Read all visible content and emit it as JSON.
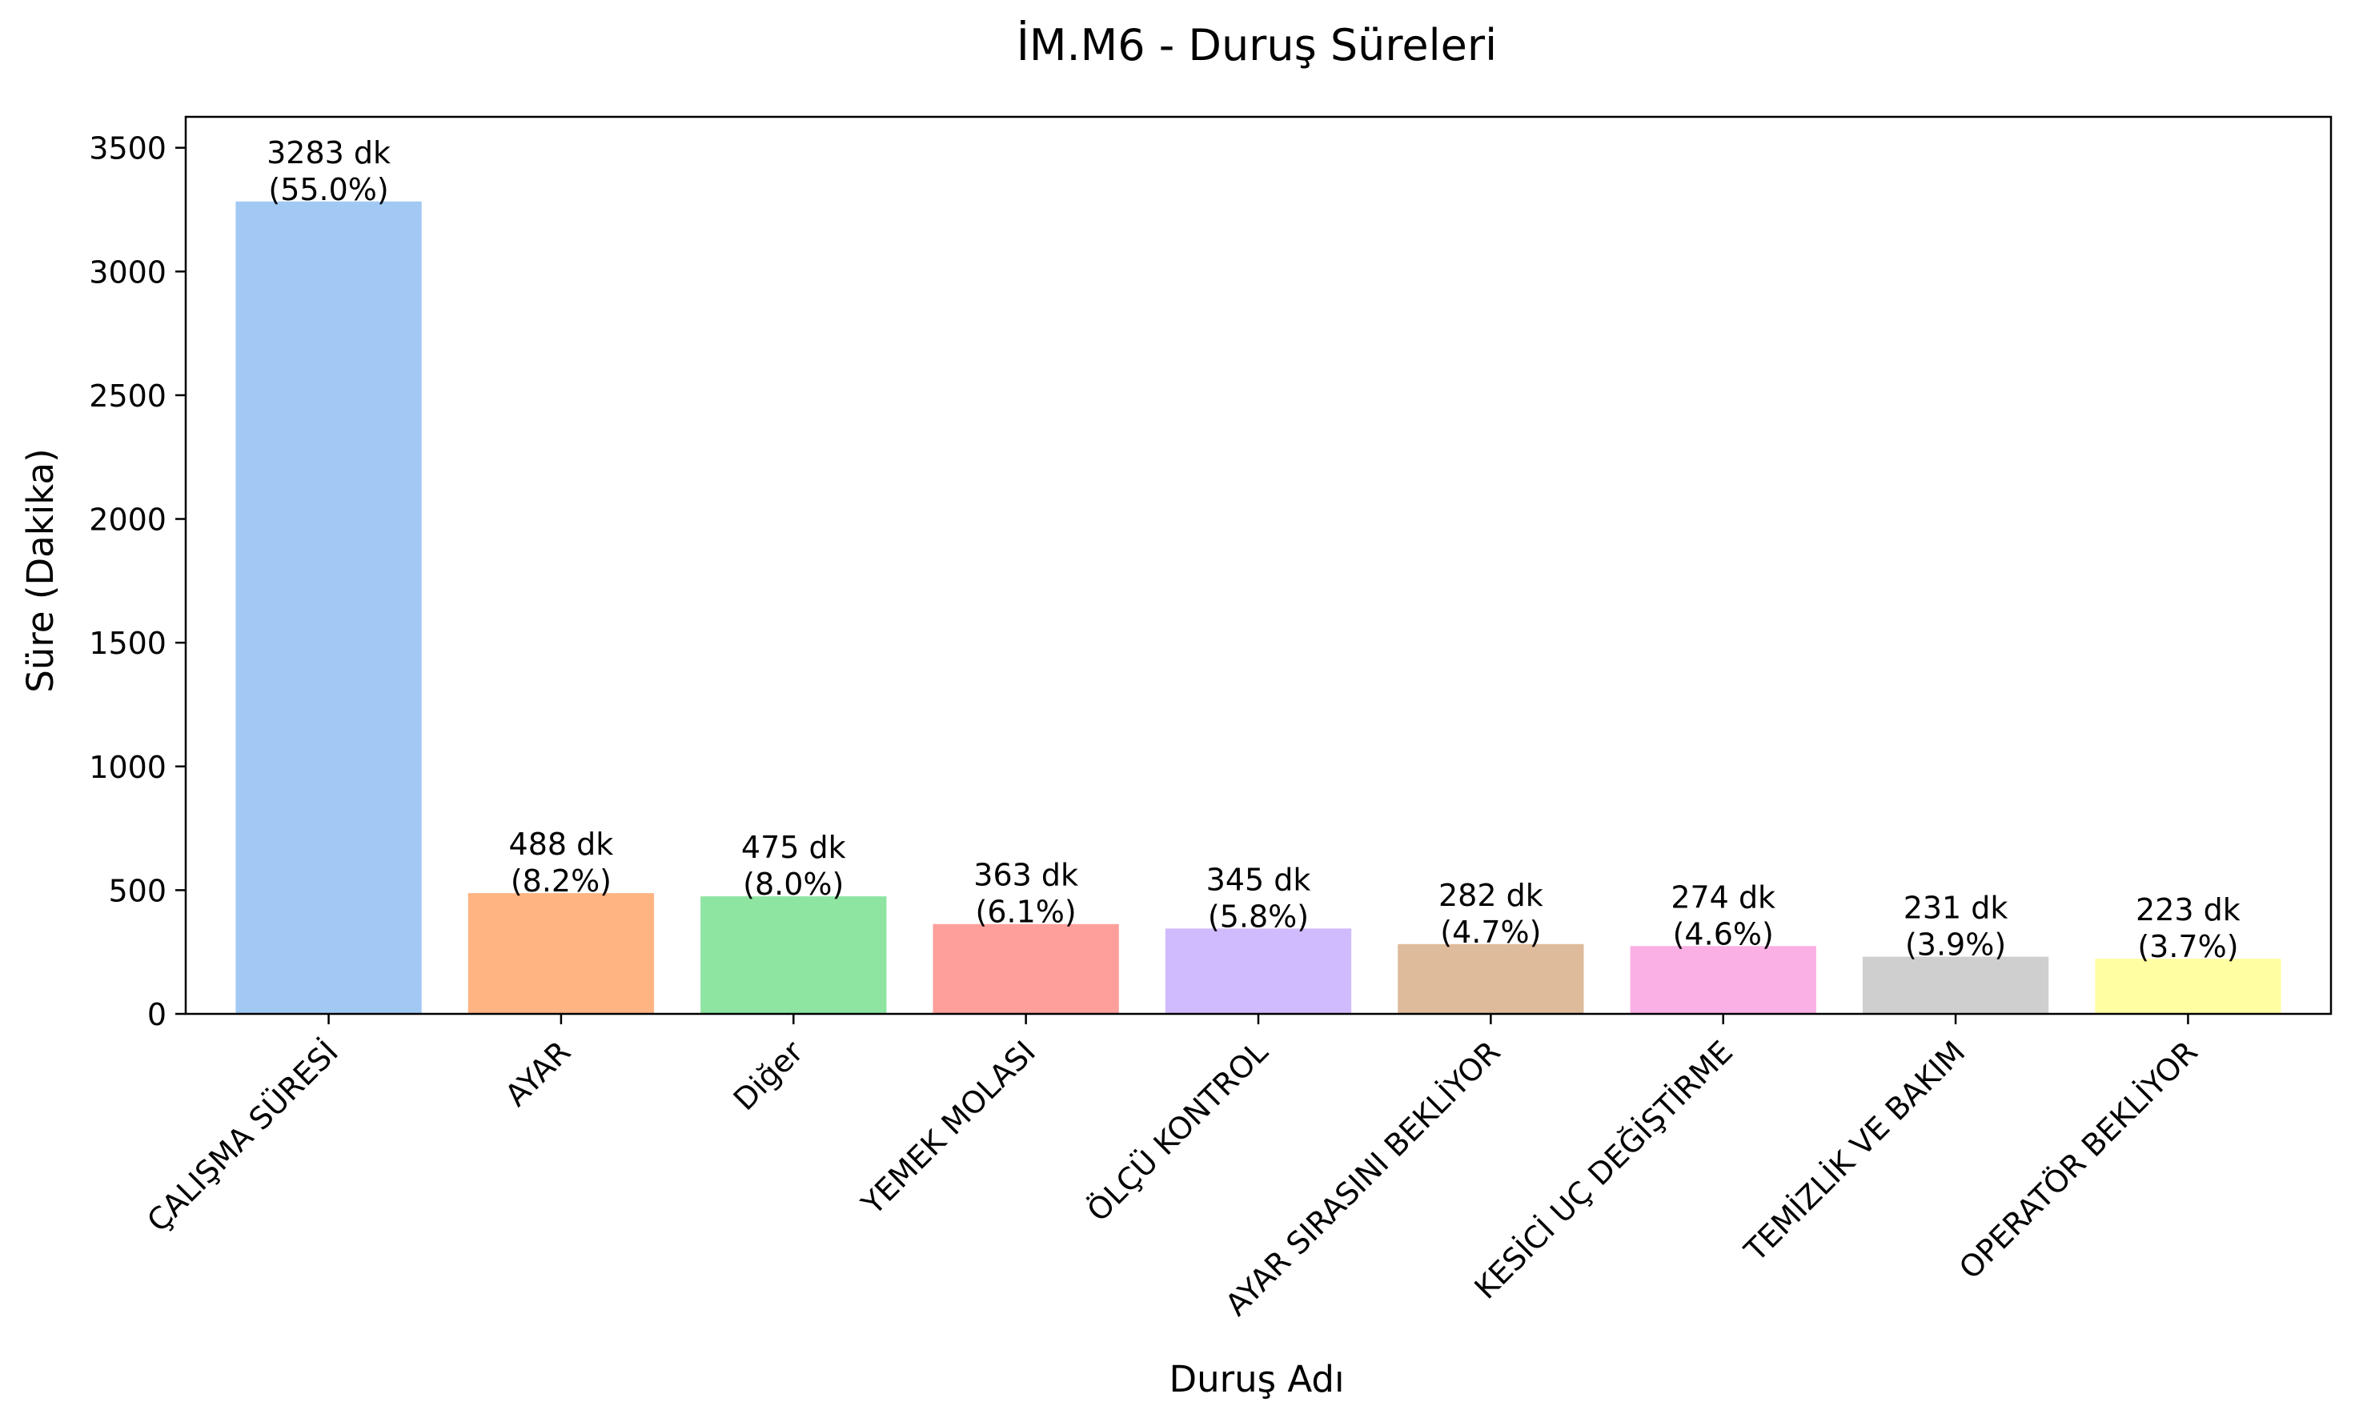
{
  "chart_data": {
    "type": "bar",
    "title": "İM.M6 - Duruş Süreleri",
    "xlabel": "Duruş Adı",
    "ylabel": "Süre (Dakika)",
    "ylim": [
      0,
      3625
    ],
    "yticks": [
      0,
      500,
      1000,
      1500,
      2000,
      2500,
      3000,
      3500
    ],
    "grid": false,
    "categories": [
      "ÇALIŞMA SÜRESİ",
      "AYAR",
      "Diğer",
      "YEMEK MOLASI",
      "ÖLÇÜ KONTROL",
      "AYAR SIRASINI BEKLİYOR",
      "KESİCİ UÇ DEĞİŞTİRME",
      "TEMİZLİK VE BAKIM",
      "OPERATÖR BEKLİYOR"
    ],
    "values": [
      3283,
      488,
      475,
      363,
      345,
      282,
      274,
      231,
      223
    ],
    "value_labels": [
      "3283 dk",
      "488 dk",
      "475 dk",
      "363 dk",
      "345 dk",
      "282 dk",
      "274 dk",
      "231 dk",
      "223 dk"
    ],
    "percent_labels": [
      "(55.0%)",
      "(8.2%)",
      "(8.0%)",
      "(6.1%)",
      "(5.8%)",
      "(4.7%)",
      "(4.6%)",
      "(3.9%)",
      "(3.7%)"
    ],
    "colors": [
      "#a1c9f4",
      "#ffb482",
      "#8de5a1",
      "#ff9f9b",
      "#d0bbff",
      "#debb9b",
      "#fab0e4",
      "#cfcfcf",
      "#fffea3"
    ]
  }
}
